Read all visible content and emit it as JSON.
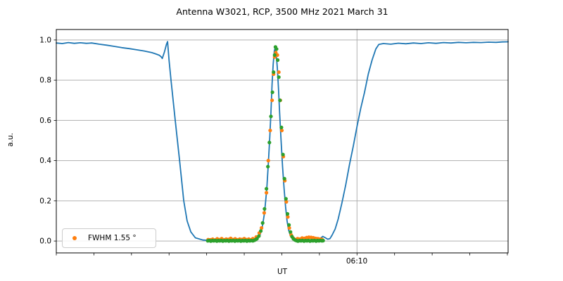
{
  "title": "Antenna W3021, RCP, 3500 MHz 2021 March 31",
  "chart_data": {
    "type": "line",
    "title": "Antenna W3021, RCP, 3500 MHz 2021 March 31",
    "xlabel": "UT",
    "ylabel": "a.u.",
    "x_axis": {
      "unit": "minutes relative to the labeled tick",
      "min": -40,
      "max": 20.1,
      "tick_interval": 5,
      "labeled_tick_value": 0,
      "labeled_tick_label": "06:10"
    },
    "y_axis": {
      "min": -0.059,
      "max": 1.052,
      "tick_values": [
        0.0,
        0.2,
        0.4,
        0.6,
        0.8,
        1.0
      ],
      "tick_labels": [
        "0.0",
        "0.2",
        "0.4",
        "0.6",
        "0.8",
        "1.0"
      ]
    },
    "grid": {
      "horizontal": true,
      "vertical_at_labeled_tick": true,
      "color": "#b0b0b0"
    },
    "legend": {
      "label": "FWHM 1.55 °",
      "marker_color": "#ff7f0e",
      "position": "lower left"
    },
    "series": [
      {
        "name": "drift-scan-signal",
        "type": "line",
        "color": "#1f77b4",
        "width": 1.8,
        "points": [
          [
            -40,
            0.985
          ],
          [
            -39.2,
            0.982
          ],
          [
            -38.4,
            0.987
          ],
          [
            -37.6,
            0.983
          ],
          [
            -36.8,
            0.986
          ],
          [
            -36,
            0.983
          ],
          [
            -35.3,
            0.985
          ],
          [
            -34.3,
            0.979
          ],
          [
            -33.3,
            0.974
          ],
          [
            -32.3,
            0.968
          ],
          [
            -31.3,
            0.962
          ],
          [
            -30.3,
            0.957
          ],
          [
            -29.3,
            0.951
          ],
          [
            -28.3,
            0.945
          ],
          [
            -27.3,
            0.937
          ],
          [
            -26.8,
            0.931
          ],
          [
            -26.3,
            0.924
          ],
          [
            -26.05,
            0.916
          ],
          [
            -25.9,
            0.908
          ],
          [
            -25.6,
            0.942
          ],
          [
            -25.35,
            0.978
          ],
          [
            -25.2,
            0.992
          ],
          [
            -25,
            0.9
          ],
          [
            -24.74,
            0.8
          ],
          [
            -24.18,
            0.6
          ],
          [
            -23.6,
            0.4
          ],
          [
            -23.05,
            0.2
          ],
          [
            -22.6,
            0.1
          ],
          [
            -22.1,
            0.045
          ],
          [
            -21.5,
            0.016
          ],
          [
            -20.5,
            0.005
          ],
          [
            -19.5,
            0.003
          ],
          [
            -18.5,
            0.002
          ],
          [
            -17.5,
            0.003
          ],
          [
            -16.5,
            0.002
          ],
          [
            -15.5,
            0.003
          ],
          [
            -14.5,
            0.002
          ],
          [
            -13.6,
            0.005
          ],
          [
            -13.2,
            0.013
          ],
          [
            -12.9,
            0.03
          ],
          [
            -12.6,
            0.07
          ],
          [
            -12.3,
            0.14
          ],
          [
            -12,
            0.26
          ],
          [
            -11.8,
            0.38
          ],
          [
            -11.6,
            0.52
          ],
          [
            -11.45,
            0.64
          ],
          [
            -11.3,
            0.78
          ],
          [
            -11.15,
            0.88
          ],
          [
            -11,
            0.945
          ],
          [
            -10.9,
            0.96
          ],
          [
            -10.75,
            0.93
          ],
          [
            -10.6,
            0.86
          ],
          [
            -10.45,
            0.76
          ],
          [
            -10.3,
            0.64
          ],
          [
            -10.1,
            0.5
          ],
          [
            -9.9,
            0.37
          ],
          [
            -9.7,
            0.26
          ],
          [
            -9.5,
            0.17
          ],
          [
            -9.3,
            0.1
          ],
          [
            -9.1,
            0.055
          ],
          [
            -8.85,
            0.025
          ],
          [
            -8.6,
            0.012
          ],
          [
            -8.3,
            0.006
          ],
          [
            -7.5,
            0.004
          ],
          [
            -6.5,
            0.004
          ],
          [
            -5.5,
            0.005
          ],
          [
            -4.9,
            0.012
          ],
          [
            -4.55,
            0.023
          ],
          [
            -4.2,
            0.016
          ],
          [
            -3.9,
            0.009
          ],
          [
            -3.6,
            0.012
          ],
          [
            -3.3,
            0.03
          ],
          [
            -2.9,
            0.06
          ],
          [
            -2.5,
            0.11
          ],
          [
            -2,
            0.19
          ],
          [
            -1.5,
            0.28
          ],
          [
            -1,
            0.38
          ],
          [
            -0.5,
            0.47
          ],
          [
            0,
            0.57
          ],
          [
            0.5,
            0.66
          ],
          [
            1,
            0.74
          ],
          [
            1.5,
            0.83
          ],
          [
            2,
            0.9
          ],
          [
            2.5,
            0.955
          ],
          [
            2.9,
            0.978
          ],
          [
            3.5,
            0.982
          ],
          [
            4.5,
            0.979
          ],
          [
            5.5,
            0.984
          ],
          [
            6.5,
            0.981
          ],
          [
            7.5,
            0.985
          ],
          [
            8.5,
            0.982
          ],
          [
            9.5,
            0.986
          ],
          [
            10.5,
            0.983
          ],
          [
            11.5,
            0.987
          ],
          [
            12.5,
            0.985
          ],
          [
            13.5,
            0.988
          ],
          [
            14.5,
            0.986
          ],
          [
            15.5,
            0.988
          ],
          [
            16.5,
            0.987
          ],
          [
            17.5,
            0.989
          ],
          [
            18.5,
            0.988
          ],
          [
            19.3,
            0.99
          ],
          [
            20.1,
            0.991
          ]
        ]
      },
      {
        "name": "measured-data-points",
        "type": "scatter",
        "color": "#ff7f0e",
        "radius": 2.6,
        "legend_label": "FWHM 1.55 °",
        "points": [
          [
            -19.8,
            0.007
          ],
          [
            -19.5,
            0.006
          ],
          [
            -19.2,
            0.009
          ],
          [
            -18.9,
            0.005
          ],
          [
            -18.6,
            0.011
          ],
          [
            -18.3,
            0.007
          ],
          [
            -18,
            0.012
          ],
          [
            -17.7,
            0.006
          ],
          [
            -17.4,
            0.01
          ],
          [
            -17.1,
            0.008
          ],
          [
            -16.8,
            0.013
          ],
          [
            -16.5,
            0.007
          ],
          [
            -16.2,
            0.011
          ],
          [
            -15.9,
            0.006
          ],
          [
            -15.6,
            0.01
          ],
          [
            -15.3,
            0.008
          ],
          [
            -15,
            0.012
          ],
          [
            -14.7,
            0.007
          ],
          [
            -14.4,
            0.01
          ],
          [
            -14.1,
            0.006
          ],
          [
            -13.85,
            0.012
          ],
          [
            -13.4,
            0.02
          ],
          [
            -13,
            0.04
          ],
          [
            -12.7,
            0.065
          ],
          [
            -12.35,
            0.14
          ],
          [
            -12.05,
            0.24
          ],
          [
            -11.8,
            0.4
          ],
          [
            -11.55,
            0.55
          ],
          [
            -11.3,
            0.7
          ],
          [
            -11.1,
            0.83
          ],
          [
            -10.95,
            0.915
          ],
          [
            -10.8,
            0.937
          ],
          [
            -10.6,
            0.925
          ],
          [
            -10.4,
            0.84
          ],
          [
            -10.2,
            0.7
          ],
          [
            -10,
            0.55
          ],
          [
            -9.8,
            0.42
          ],
          [
            -9.6,
            0.3
          ],
          [
            -9.4,
            0.195
          ],
          [
            -9.2,
            0.12
          ],
          [
            -9,
            0.065
          ],
          [
            -8.75,
            0.03
          ],
          [
            -8.5,
            0.015
          ],
          [
            -8.2,
            0.008
          ],
          [
            -7.9,
            0.012
          ],
          [
            -7.6,
            0.01
          ],
          [
            -7.3,
            0.015
          ],
          [
            -7,
            0.013
          ],
          [
            -6.7,
            0.017
          ],
          [
            -6.4,
            0.019
          ],
          [
            -6.1,
            0.018
          ],
          [
            -5.8,
            0.016
          ],
          [
            -5.5,
            0.013
          ],
          [
            -5.2,
            0.012
          ],
          [
            -4.9,
            0.01
          ],
          [
            -4.65,
            0.008
          ]
        ]
      },
      {
        "name": "gaussian-fit-points",
        "type": "scatter",
        "color": "#2ca02c",
        "radius": 2.6,
        "points": [
          [
            -19.85,
            0.001
          ],
          [
            -19.65,
            0.003
          ],
          [
            -19.45,
            0
          ],
          [
            -19.25,
            0.002
          ],
          [
            -19.05,
            0.001
          ],
          [
            -18.85,
            0.003
          ],
          [
            -18.65,
            0
          ],
          [
            -18.45,
            0.002
          ],
          [
            -18.25,
            0.001
          ],
          [
            -18.05,
            0.003
          ],
          [
            -17.85,
            0
          ],
          [
            -17.65,
            0.002
          ],
          [
            -17.45,
            0.001
          ],
          [
            -17.25,
            0.003
          ],
          [
            -17.05,
            0
          ],
          [
            -16.85,
            0.002
          ],
          [
            -16.65,
            0.001
          ],
          [
            -16.45,
            0.003
          ],
          [
            -16.25,
            0
          ],
          [
            -16.05,
            0.002
          ],
          [
            -15.85,
            0.001
          ],
          [
            -15.65,
            0.003
          ],
          [
            -15.45,
            0
          ],
          [
            -15.25,
            0.002
          ],
          [
            -15.05,
            0.001
          ],
          [
            -14.85,
            0.003
          ],
          [
            -14.65,
            0
          ],
          [
            -14.45,
            0.002
          ],
          [
            -14.25,
            0.001
          ],
          [
            -14.05,
            0.003
          ],
          [
            -13.85,
            0.001
          ],
          [
            -13.65,
            0.004
          ],
          [
            -13.45,
            0.008
          ],
          [
            -13.3,
            0.012
          ],
          [
            -13.05,
            0.025
          ],
          [
            -12.8,
            0.05
          ],
          [
            -12.55,
            0.09
          ],
          [
            -12.3,
            0.16
          ],
          [
            -12.05,
            0.26
          ],
          [
            -11.85,
            0.37
          ],
          [
            -11.65,
            0.49
          ],
          [
            -11.45,
            0.62
          ],
          [
            -11.25,
            0.74
          ],
          [
            -11.1,
            0.84
          ],
          [
            -10.95,
            0.925
          ],
          [
            -10.85,
            0.965
          ],
          [
            -10.7,
            0.955
          ],
          [
            -10.55,
            0.9
          ],
          [
            -10.4,
            0.815
          ],
          [
            -10.25,
            0.7
          ],
          [
            -10.05,
            0.565
          ],
          [
            -9.85,
            0.43
          ],
          [
            -9.65,
            0.31
          ],
          [
            -9.45,
            0.21
          ],
          [
            -9.25,
            0.135
          ],
          [
            -9.05,
            0.08
          ],
          [
            -8.85,
            0.045
          ],
          [
            -8.65,
            0.022
          ],
          [
            -8.45,
            0.011
          ],
          [
            -8.25,
            0.005
          ],
          [
            -8.05,
            0.002
          ],
          [
            -7.85,
            0
          ],
          [
            -7.65,
            0.002
          ],
          [
            -7.45,
            0.001
          ],
          [
            -7.25,
            0.003
          ],
          [
            -7.05,
            0
          ],
          [
            -6.85,
            0.002
          ],
          [
            -6.65,
            0.001
          ],
          [
            -6.45,
            0.003
          ],
          [
            -6.25,
            0
          ],
          [
            -6.05,
            0.002
          ],
          [
            -5.85,
            0.001
          ],
          [
            -5.65,
            0.003
          ],
          [
            -5.45,
            0
          ],
          [
            -5.25,
            0.002
          ],
          [
            -5.05,
            0.001
          ],
          [
            -4.85,
            0.003
          ],
          [
            -4.65,
            0.001
          ],
          [
            -4.5,
            0.002
          ]
        ]
      }
    ]
  },
  "layout_text": {
    "note": ""
  }
}
